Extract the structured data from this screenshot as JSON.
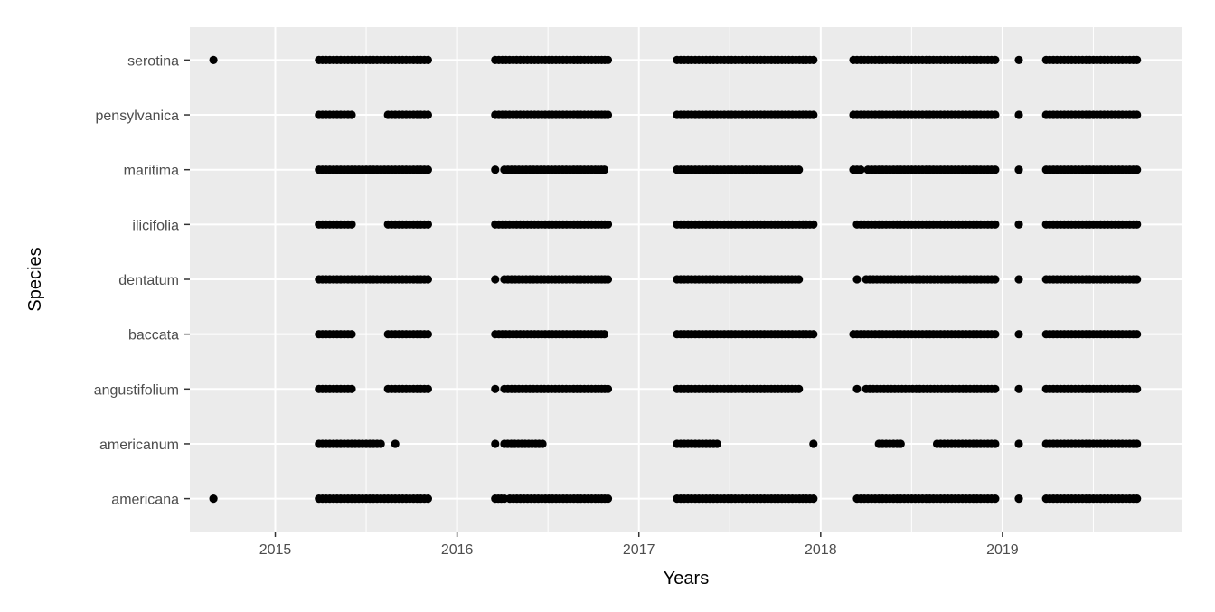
{
  "chart_data": {
    "type": "scatter",
    "title": "",
    "xlabel": "Years",
    "ylabel": "Species",
    "x_ticks": [
      "2015",
      "2016",
      "2017",
      "2018",
      "2019"
    ],
    "xlim": [
      2014.53,
      2019.99
    ],
    "grid": true,
    "legend": "none",
    "categories": [
      "americana",
      "americanum",
      "angustifolium",
      "baccata",
      "dentatum",
      "ilicifolia",
      "maritima",
      "pensylvanica",
      "serotina"
    ],
    "colors": {
      "panel": "#ebebeb",
      "grid": "#ffffff",
      "point": "#000000"
    },
    "series": [
      {
        "category": "serotina",
        "segments": [
          [
            2014.66,
            2014.66
          ],
          [
            2015.24,
            2015.84
          ],
          [
            2016.21,
            2016.74
          ],
          [
            2016.76,
            2016.83
          ],
          [
            2017.21,
            2017.67
          ],
          [
            2017.69,
            2017.96
          ],
          [
            2018.18,
            2018.96
          ],
          [
            2019.09,
            2019.09
          ],
          [
            2019.24,
            2019.74
          ]
        ]
      },
      {
        "category": "pensylvanica",
        "segments": [
          [
            2015.24,
            2015.42
          ],
          [
            2015.62,
            2015.84
          ],
          [
            2016.21,
            2016.74
          ],
          [
            2016.76,
            2016.83
          ],
          [
            2017.21,
            2017.67
          ],
          [
            2017.69,
            2017.96
          ],
          [
            2018.18,
            2018.96
          ],
          [
            2019.09,
            2019.09
          ],
          [
            2019.24,
            2019.74
          ]
        ]
      },
      {
        "category": "maritima",
        "segments": [
          [
            2015.24,
            2015.84
          ],
          [
            2016.21,
            2016.21
          ],
          [
            2016.26,
            2016.74
          ],
          [
            2016.76,
            2016.81
          ],
          [
            2017.21,
            2017.67
          ],
          [
            2017.69,
            2017.88
          ],
          [
            2018.18,
            2018.22
          ],
          [
            2018.26,
            2018.96
          ],
          [
            2019.09,
            2019.09
          ],
          [
            2019.24,
            2019.74
          ]
        ]
      },
      {
        "category": "ilicifolia",
        "segments": [
          [
            2015.24,
            2015.42
          ],
          [
            2015.62,
            2015.84
          ],
          [
            2016.21,
            2016.74
          ],
          [
            2016.76,
            2016.83
          ],
          [
            2017.21,
            2017.67
          ],
          [
            2017.69,
            2017.96
          ],
          [
            2018.2,
            2018.96
          ],
          [
            2019.09,
            2019.09
          ],
          [
            2019.24,
            2019.74
          ]
        ]
      },
      {
        "category": "dentatum",
        "segments": [
          [
            2015.24,
            2015.84
          ],
          [
            2016.21,
            2016.21
          ],
          [
            2016.26,
            2016.74
          ],
          [
            2016.76,
            2016.83
          ],
          [
            2017.21,
            2017.67
          ],
          [
            2017.69,
            2017.88
          ],
          [
            2018.2,
            2018.2
          ],
          [
            2018.25,
            2018.96
          ],
          [
            2019.09,
            2019.09
          ],
          [
            2019.24,
            2019.74
          ]
        ]
      },
      {
        "category": "baccata",
        "segments": [
          [
            2015.24,
            2015.42
          ],
          [
            2015.62,
            2015.84
          ],
          [
            2016.21,
            2016.74
          ],
          [
            2016.76,
            2016.81
          ],
          [
            2017.21,
            2017.67
          ],
          [
            2017.69,
            2017.96
          ],
          [
            2018.18,
            2018.96
          ],
          [
            2019.09,
            2019.09
          ],
          [
            2019.24,
            2019.74
          ]
        ]
      },
      {
        "category": "angustifolium",
        "segments": [
          [
            2015.24,
            2015.42
          ],
          [
            2015.62,
            2015.84
          ],
          [
            2016.21,
            2016.21
          ],
          [
            2016.26,
            2016.74
          ],
          [
            2016.76,
            2016.83
          ],
          [
            2017.21,
            2017.67
          ],
          [
            2017.69,
            2017.88
          ],
          [
            2018.2,
            2018.2
          ],
          [
            2018.25,
            2018.96
          ],
          [
            2019.09,
            2019.09
          ],
          [
            2019.24,
            2019.74
          ]
        ]
      },
      {
        "category": "americanum",
        "segments": [
          [
            2015.24,
            2015.58
          ],
          [
            2015.66,
            2015.66
          ],
          [
            2016.21,
            2016.21
          ],
          [
            2016.26,
            2016.47
          ],
          [
            2017.21,
            2017.43
          ],
          [
            2017.96,
            2017.96
          ],
          [
            2018.32,
            2018.44
          ],
          [
            2018.64,
            2018.96
          ],
          [
            2019.09,
            2019.09
          ],
          [
            2019.24,
            2019.74
          ]
        ]
      },
      {
        "category": "americana",
        "segments": [
          [
            2014.66,
            2014.66
          ],
          [
            2015.24,
            2015.84
          ],
          [
            2016.21,
            2016.26
          ],
          [
            2016.29,
            2016.74
          ],
          [
            2016.76,
            2016.83
          ],
          [
            2017.21,
            2017.67
          ],
          [
            2017.69,
            2017.96
          ],
          [
            2018.2,
            2018.96
          ],
          [
            2019.09,
            2019.09
          ],
          [
            2019.24,
            2019.74
          ]
        ]
      }
    ]
  }
}
